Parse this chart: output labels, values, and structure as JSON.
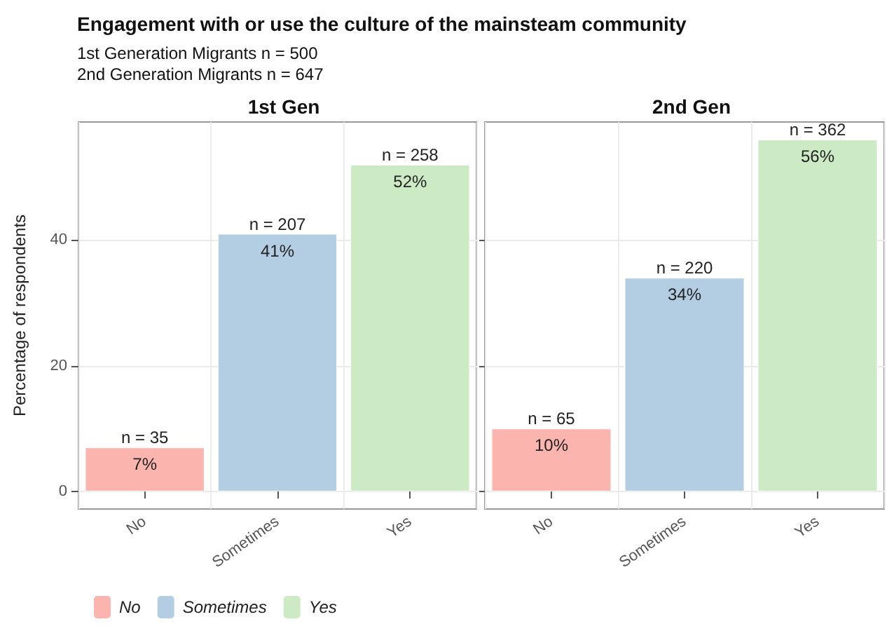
{
  "chart_data": [
    {
      "type": "bar",
      "title": "1st Gen",
      "ylabel": "Percentage of respondents",
      "categories": [
        "No",
        "Sometimes",
        "Yes"
      ],
      "series": [
        {
          "name": "No",
          "color": "#fbb4ae",
          "values": [
            7,
            null,
            null
          ],
          "value_labels": [
            "7%",
            null,
            null
          ]
        },
        {
          "name": "Sometimes",
          "color": "#b3cde3",
          "values": [
            null,
            41,
            null
          ],
          "value_labels": [
            null,
            "41%",
            null
          ]
        },
        {
          "name": "Yes",
          "color": "#ccebc5",
          "values": [
            null,
            null,
            52
          ],
          "value_labels": [
            null,
            null,
            "52%"
          ]
        }
      ],
      "ylim": [
        -2.8,
        58.8
      ],
      "yticks": [
        0,
        20,
        40
      ],
      "grid": true,
      "legend": "bottom left",
      "annotations": [
        "Engagement with or use the culture of the mainsteam community",
        "1st Generation Migrants n = 500",
        "2nd Generation Migrants n = 647",
        {
          "text": "n = 35",
          "x": "No",
          "y": 7
        },
        {
          "text": "n = 207",
          "x": "Sometimes",
          "y": 41
        },
        {
          "text": "n = 258",
          "x": "Yes",
          "y": 52
        }
      ]
    },
    {
      "type": "bar",
      "title": "2nd Gen",
      "categories": [
        "No",
        "Sometimes",
        "Yes"
      ],
      "series": [
        {
          "name": "No",
          "color": "#fbb4ae",
          "values": [
            10,
            null,
            null
          ],
          "value_labels": [
            "10%",
            null,
            null
          ]
        },
        {
          "name": "Sometimes",
          "color": "#b3cde3",
          "values": [
            null,
            34,
            null
          ],
          "value_labels": [
            null,
            "34%",
            null
          ]
        },
        {
          "name": "Yes",
          "color": "#ccebc5",
          "values": [
            null,
            null,
            56
          ],
          "value_labels": [
            null,
            null,
            "56%"
          ]
        }
      ],
      "ylim": [
        -2.8,
        58.8
      ],
      "yticks": [
        0,
        20,
        40
      ],
      "grid": true,
      "tick_labels": "x",
      "annotations": [
        {
          "text": "n = 65",
          "x": "No",
          "y": 10
        },
        {
          "text": "n = 220",
          "x": "Sometimes",
          "y": 34
        },
        {
          "text": "n = 362",
          "x": "Yes",
          "y": 56
        }
      ]
    }
  ]
}
